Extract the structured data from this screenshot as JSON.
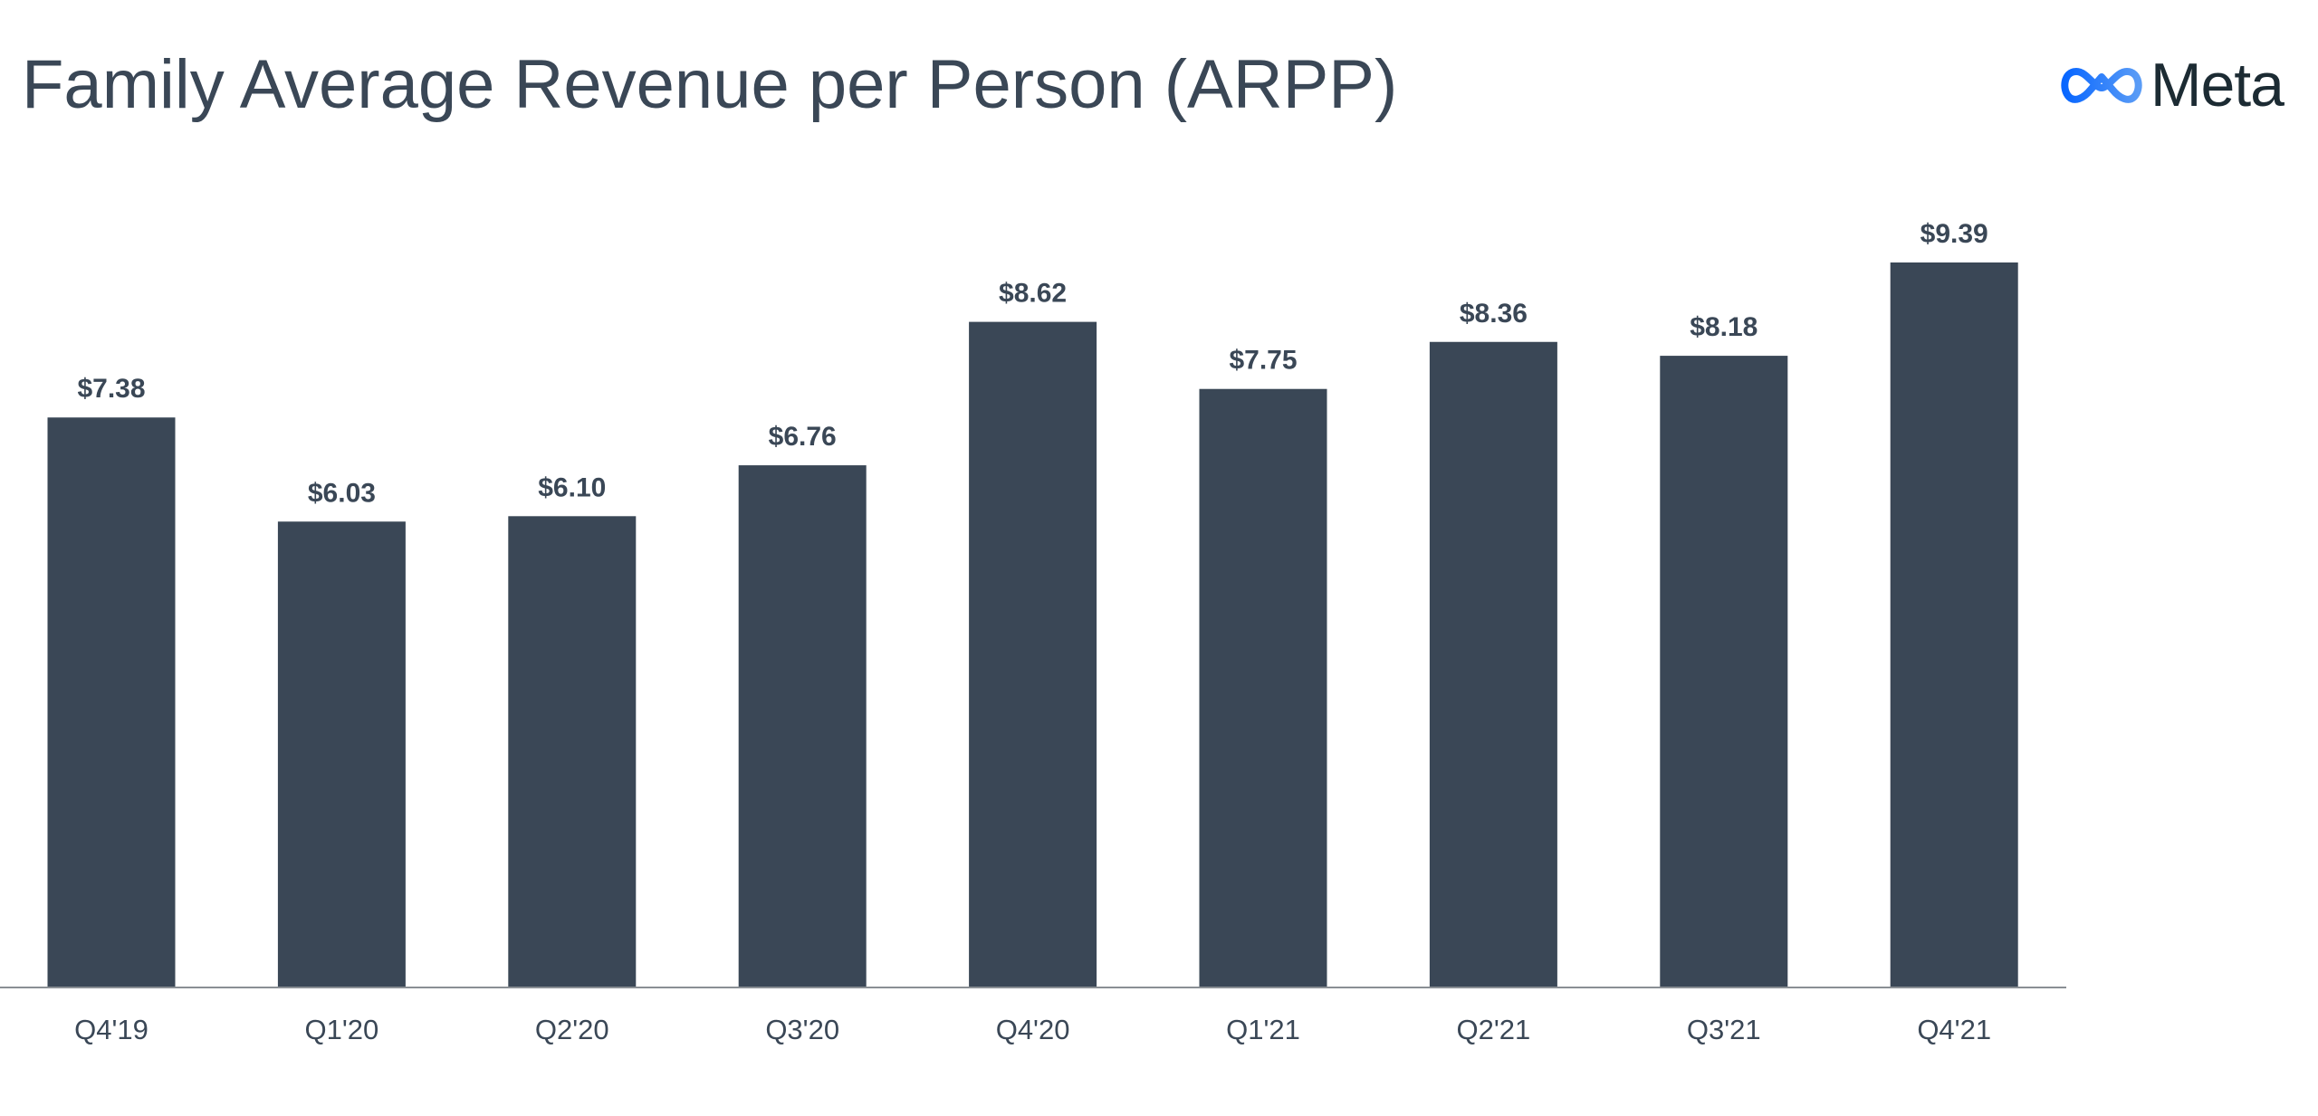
{
  "logo": {
    "text": "Meta",
    "icon": "meta-infinity-icon",
    "colors": [
      "#0866ff",
      "#5a9cf6"
    ]
  },
  "chart_data": {
    "type": "bar",
    "title": "Family Average Revenue per Person (ARPP)",
    "xlabel": "",
    "ylabel": "",
    "categories": [
      "Q4'19",
      "Q1'20",
      "Q2'20",
      "Q3'20",
      "Q4'20",
      "Q1'21",
      "Q2'21",
      "Q3'21",
      "Q4'21"
    ],
    "values": [
      7.38,
      6.03,
      6.1,
      6.76,
      8.62,
      7.75,
      8.36,
      8.18,
      9.39
    ],
    "value_labels": [
      "$7.38",
      "$6.03",
      "$6.10",
      "$6.76",
      "$8.62",
      "$7.75",
      "$8.36",
      "$8.18",
      "$9.39"
    ],
    "ylim": [
      0,
      9.39
    ],
    "grid": false,
    "legend": "none",
    "bar_color": "#3a4756",
    "axis_color": "#8a8f94"
  }
}
